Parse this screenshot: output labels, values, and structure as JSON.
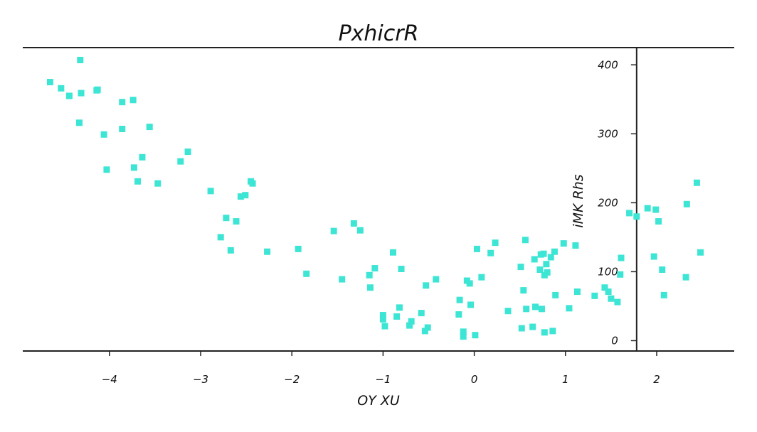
{
  "chart_data": {
    "type": "scatter",
    "title": "PxhicrR",
    "xlabel": "OY  XU",
    "ylabel": "iMK Rhs",
    "xlim": [
      -4.95,
      2.85
    ],
    "ylim": [
      -15,
      425
    ],
    "xticks": [
      -4,
      -3,
      -2,
      -1,
      0,
      1,
      2
    ],
    "xtick_labels": [
      "−4",
      "−3",
      "−2",
      "−1",
      "0",
      "1",
      "2"
    ],
    "yticks": [
      0,
      100,
      200,
      300,
      400
    ],
    "ytick_labels": [
      "0",
      "100",
      "200",
      "300",
      "400"
    ],
    "y_axis_at_x": 1.78,
    "grid": false,
    "marker": "square",
    "colors": {
      "points": "#3de5d5",
      "axes": "#222222",
      "text": "#111111"
    },
    "series": [
      {
        "points": [
          [
            -4.65,
            375
          ],
          [
            -4.53,
            366
          ],
          [
            -4.44,
            355
          ],
          [
            -4.32,
            407
          ],
          [
            -4.31,
            359
          ],
          [
            -4.33,
            316
          ],
          [
            -4.13,
            364
          ],
          [
            -4.14,
            363
          ],
          [
            -4.06,
            299
          ],
          [
            -4.03,
            248
          ],
          [
            -3.86,
            346
          ],
          [
            -3.86,
            307
          ],
          [
            -3.74,
            349
          ],
          [
            -3.73,
            251
          ],
          [
            -3.69,
            231
          ],
          [
            -3.64,
            266
          ],
          [
            -3.56,
            310
          ],
          [
            -3.47,
            228
          ],
          [
            -3.22,
            260
          ],
          [
            -3.14,
            274
          ],
          [
            -2.89,
            217
          ],
          [
            -2.78,
            150
          ],
          [
            -2.72,
            178
          ],
          [
            -2.67,
            131
          ],
          [
            -2.61,
            173
          ],
          [
            -2.56,
            209
          ],
          [
            -2.51,
            211
          ],
          [
            -2.45,
            231
          ],
          [
            -2.43,
            228
          ],
          [
            -2.27,
            129
          ],
          [
            -1.93,
            133
          ],
          [
            -1.84,
            97
          ],
          [
            -1.54,
            159
          ],
          [
            -1.45,
            89
          ],
          [
            -1.32,
            170
          ],
          [
            -1.25,
            160
          ],
          [
            -1.15,
            95
          ],
          [
            -1.14,
            77
          ],
          [
            -1.09,
            105
          ],
          [
            -1.0,
            37
          ],
          [
            -1.0,
            31
          ],
          [
            -0.98,
            21
          ],
          [
            -0.89,
            128
          ],
          [
            -0.85,
            35
          ],
          [
            -0.82,
            48
          ],
          [
            -0.8,
            104
          ],
          [
            -0.71,
            22
          ],
          [
            -0.69,
            28
          ],
          [
            -0.58,
            40
          ],
          [
            -0.54,
            14
          ],
          [
            -0.53,
            80
          ],
          [
            -0.51,
            19
          ],
          [
            -0.42,
            89
          ],
          [
            -0.17,
            38
          ],
          [
            -0.16,
            59
          ],
          [
            -0.12,
            13
          ],
          [
            -0.12,
            6
          ],
          [
            -0.08,
            87
          ],
          [
            -0.05,
            83
          ],
          [
            -0.04,
            52
          ],
          [
            0.01,
            8
          ],
          [
            0.03,
            133
          ],
          [
            0.08,
            92
          ],
          [
            0.18,
            127
          ],
          [
            0.23,
            142
          ],
          [
            0.37,
            43
          ],
          [
            0.51,
            107
          ],
          [
            0.52,
            18
          ],
          [
            0.54,
            73
          ],
          [
            0.56,
            146
          ],
          [
            0.57,
            46
          ],
          [
            0.64,
            20
          ],
          [
            0.66,
            118
          ],
          [
            0.67,
            49
          ],
          [
            0.72,
            103
          ],
          [
            0.73,
            125
          ],
          [
            0.74,
            46
          ],
          [
            0.76,
            126
          ],
          [
            0.77,
            95
          ],
          [
            0.77,
            12
          ],
          [
            0.79,
            111
          ],
          [
            0.8,
            99
          ],
          [
            0.84,
            121
          ],
          [
            0.86,
            14
          ],
          [
            0.88,
            129
          ],
          [
            0.89,
            66
          ],
          [
            0.98,
            141
          ],
          [
            1.04,
            47
          ],
          [
            1.11,
            138
          ],
          [
            1.13,
            71
          ],
          [
            1.32,
            65
          ],
          [
            1.43,
            77
          ],
          [
            1.47,
            71
          ],
          [
            1.5,
            61
          ],
          [
            1.57,
            56
          ],
          [
            1.6,
            96
          ],
          [
            1.61,
            120
          ],
          [
            1.7,
            185
          ],
          [
            1.78,
            180
          ],
          [
            1.9,
            192
          ],
          [
            1.97,
            122
          ],
          [
            1.99,
            190
          ],
          [
            2.02,
            173
          ],
          [
            2.06,
            103
          ],
          [
            2.08,
            66
          ],
          [
            2.33,
            198
          ],
          [
            2.32,
            92
          ],
          [
            2.44,
            229
          ],
          [
            2.48,
            128
          ]
        ]
      }
    ]
  }
}
